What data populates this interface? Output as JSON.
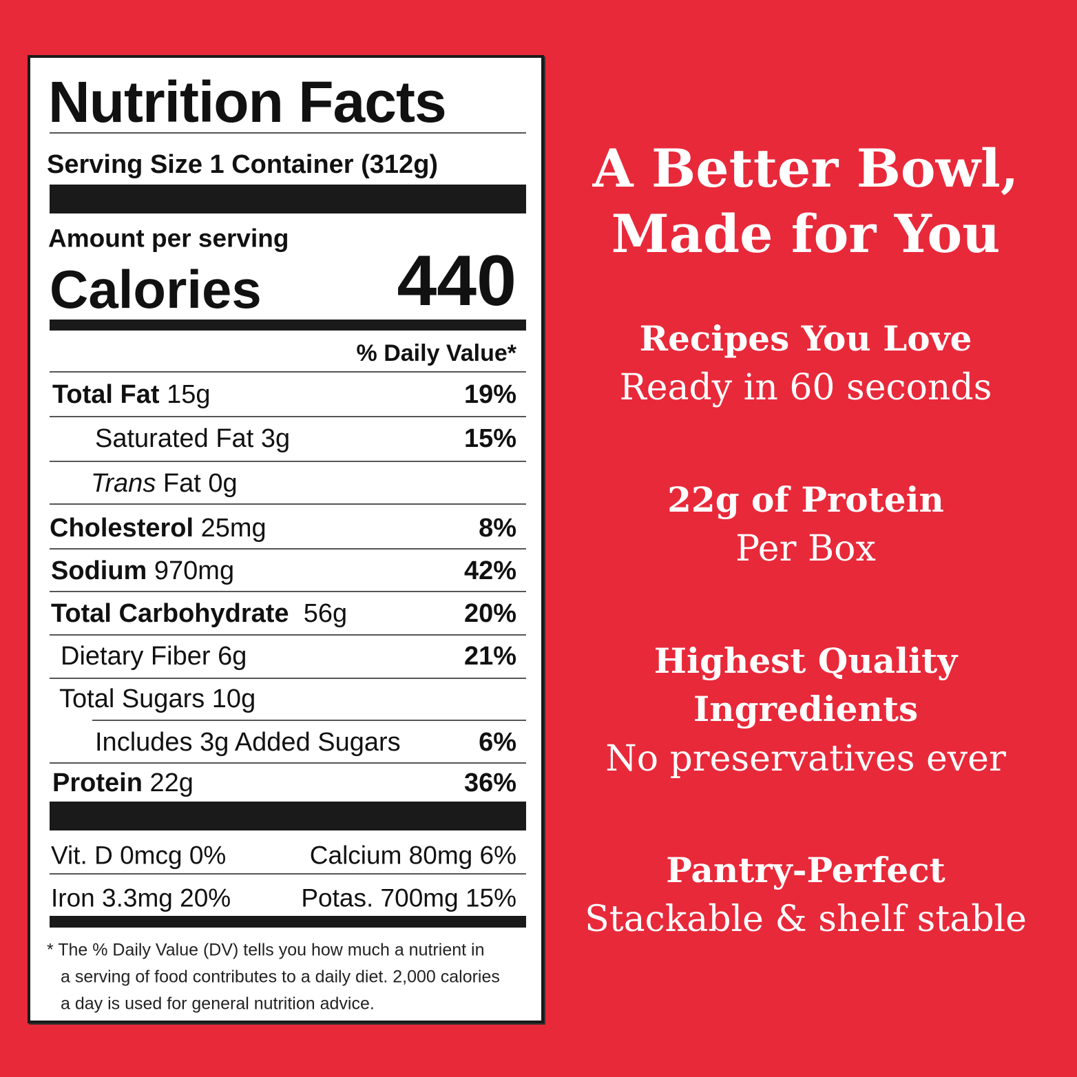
{
  "background_color": "#e8293a",
  "label": {
    "title": "Nutrition Facts",
    "serving_size_label": "Serving Size",
    "serving_size_value": "1 Container (312g)",
    "amount_per_serving": "Amount per serving",
    "calories_label": "Calories",
    "calories_value": "440",
    "dv_header": "% Daily Value*",
    "rows": [
      {
        "name": "Total Fat",
        "amount": "15g",
        "dv": "19%"
      },
      {
        "name": "Saturated Fat",
        "amount": "3g",
        "dv": "15%"
      },
      {
        "name": "Trans",
        "name_rest": "Fat",
        "amount": "0g",
        "dv": ""
      },
      {
        "name": "Cholesterol",
        "amount": "25mg",
        "dv": "8%"
      },
      {
        "name": "Sodium",
        "amount": "970mg",
        "dv": "42%"
      },
      {
        "name": "Total Carbohydrate",
        "amount": "56g",
        "dv": "20%"
      },
      {
        "name": "Dietary Fiber",
        "amount": "6g",
        "dv": "21%"
      },
      {
        "name": "Total Sugars",
        "amount": "10g",
        "dv": ""
      },
      {
        "name": "Includes 3g Added Sugars",
        "amount": "",
        "dv": "6%"
      },
      {
        "name": "Protein",
        "amount": "22g",
        "dv": "36%"
      }
    ],
    "vitamins": [
      [
        "Vit. D 0mcg 0%",
        "Calcium 80mg 6%"
      ],
      [
        "Iron 3.3mg 20%",
        "Potas. 700mg 15%"
      ]
    ],
    "footnote": [
      "* The % Daily Value (DV) tells you how much a nutrient in",
      "a serving of food contributes to a daily diet. 2,000 calories",
      "a day is used for general nutrition advice."
    ]
  },
  "headline": [
    "A Better Bowl,",
    "Made for You"
  ],
  "features": [
    {
      "title": [
        "Recipes You Love"
      ],
      "subtitle": "Ready in 60 seconds"
    },
    {
      "title": [
        "22g of Protein"
      ],
      "subtitle": "Per Box"
    },
    {
      "title": [
        "Highest Quality",
        "Ingredients"
      ],
      "subtitle": "No preservatives ever"
    },
    {
      "title": [
        "Pantry-Perfect"
      ],
      "subtitle": "Stackable & shelf stable"
    }
  ]
}
